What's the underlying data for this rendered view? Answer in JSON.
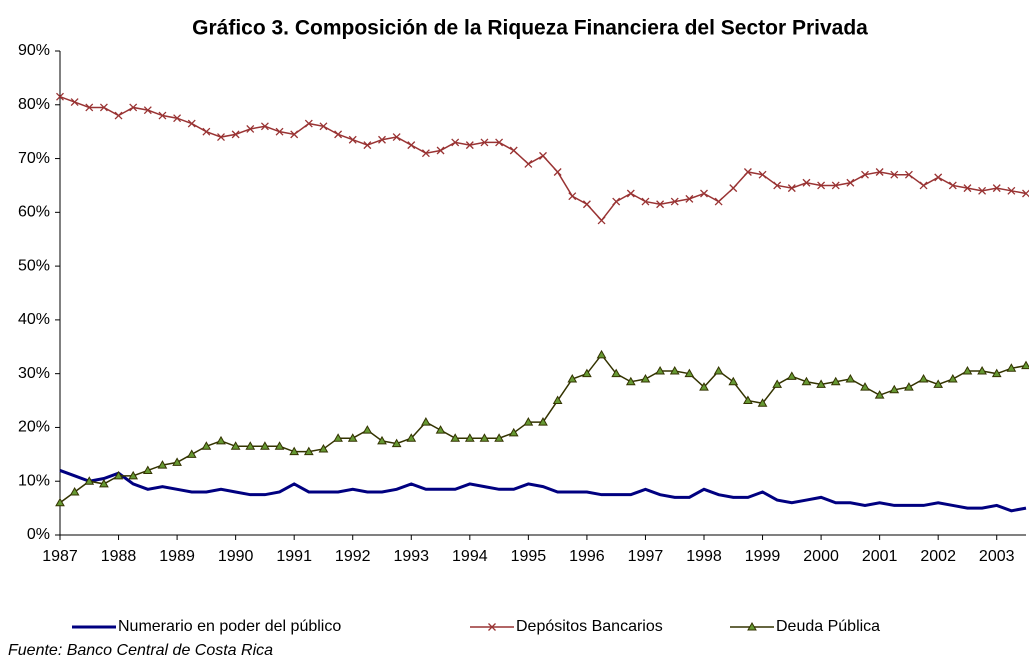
{
  "chart_data": {
    "type": "line",
    "title": "Gráfico 3. Composición de la Riqueza Financiera del Sector Privada",
    "source": "Fuente: Banco Central de Costa Rica",
    "x": [
      1987,
      1987.25,
      1987.5,
      1987.75,
      1988,
      1988.25,
      1988.5,
      1988.75,
      1989,
      1989.25,
      1989.5,
      1989.75,
      1990,
      1990.25,
      1990.5,
      1990.75,
      1991,
      1991.25,
      1991.5,
      1991.75,
      1992,
      1992.25,
      1992.5,
      1992.75,
      1993,
      1993.25,
      1993.5,
      1993.75,
      1994,
      1994.25,
      1994.5,
      1994.75,
      1995,
      1995.25,
      1995.5,
      1995.75,
      1996,
      1996.25,
      1996.5,
      1996.75,
      1997,
      1997.25,
      1997.5,
      1997.75,
      1998,
      1998.25,
      1998.5,
      1998.75,
      1999,
      1999.25,
      1999.5,
      1999.75,
      2000,
      2000.25,
      2000.5,
      2000.75,
      2001,
      2001.25,
      2001.5,
      2001.75,
      2002,
      2002.25,
      2002.5,
      2002.75,
      2003,
      2003.25,
      2003.5
    ],
    "series": [
      {
        "name": "Numerario en poder del público",
        "color": "#000080",
        "marker": "none",
        "values": [
          12,
          11,
          10,
          10.5,
          11.5,
          9.5,
          8.5,
          9,
          8.5,
          8,
          8,
          8.5,
          8,
          7.5,
          7.5,
          8,
          9.5,
          8,
          8,
          8,
          8.5,
          8,
          8,
          8.5,
          9.5,
          8.5,
          8.5,
          8.5,
          9.5,
          9,
          8.5,
          8.5,
          9.5,
          9,
          8,
          8,
          8,
          7.5,
          7.5,
          7.5,
          8.5,
          7.5,
          7,
          7,
          8.5,
          7.5,
          7,
          7,
          8,
          6.5,
          6,
          6.5,
          7,
          6,
          6,
          5.5,
          6,
          5.5,
          5.5,
          5.5,
          6,
          5.5,
          5,
          5,
          5.5,
          4.5,
          5
        ]
      },
      {
        "name": "Depósitos Bancarios",
        "color": "#993333",
        "marker": "x",
        "values": [
          81.5,
          80.5,
          79.5,
          79.5,
          78,
          79.5,
          79,
          78,
          77.5,
          76.5,
          75,
          74,
          74.5,
          75.5,
          76,
          75,
          74.5,
          76.5,
          76,
          74.5,
          73.5,
          72.5,
          73.5,
          74,
          72.5,
          71,
          71.5,
          73,
          72.5,
          73,
          73,
          71.5,
          69,
          70.5,
          67.5,
          63,
          61.5,
          58.5,
          62,
          63.5,
          62,
          61.5,
          62,
          62.5,
          63.5,
          62,
          64.5,
          67.5,
          67,
          65,
          64.5,
          65.5,
          65,
          65,
          65.5,
          67,
          67.5,
          67,
          67,
          65,
          66.5,
          65,
          64.5,
          64,
          64.5,
          64,
          63.5
        ]
      },
      {
        "name": "Deuda Pública",
        "color": "#333300",
        "marker": "triangle",
        "values": [
          6,
          8,
          10,
          9.5,
          11,
          11,
          12,
          13,
          13.5,
          15,
          16.5,
          17.5,
          16.5,
          16.5,
          16.5,
          16.5,
          15.5,
          15.5,
          16,
          18,
          18,
          19.5,
          17.5,
          17,
          18,
          21,
          19.5,
          18,
          18,
          18,
          18,
          19,
          21,
          21,
          25,
          29,
          30,
          33.5,
          30,
          28.5,
          29,
          30.5,
          30.5,
          30,
          27.5,
          30.5,
          28.5,
          25,
          24.5,
          28,
          29.5,
          28.5,
          28,
          28.5,
          29,
          27.5,
          26,
          27,
          27.5,
          29,
          28,
          29,
          30.5,
          30.5,
          30,
          31,
          31.5
        ]
      }
    ],
    "xlim": [
      1987,
      2003.5
    ],
    "xticks": [
      1987,
      1988,
      1989,
      1990,
      1991,
      1992,
      1993,
      1994,
      1995,
      1996,
      1997,
      1998,
      1999,
      2000,
      2001,
      2002,
      2003
    ],
    "ylim": [
      0,
      90
    ],
    "yticks": [
      {
        "value": 0,
        "label": "0%"
      },
      {
        "value": 10,
        "label": "10%"
      },
      {
        "value": 20,
        "label": "20%"
      },
      {
        "value": 30,
        "label": "30%"
      },
      {
        "value": 40,
        "label": "40%"
      },
      {
        "value": 50,
        "label": "50%"
      },
      {
        "value": 60,
        "label": "60%"
      },
      {
        "value": 70,
        "label": "70%"
      },
      {
        "value": 80,
        "label": "80%"
      },
      {
        "value": 90,
        "label": "90%"
      }
    ],
    "grid": false,
    "legend": "bottom"
  }
}
